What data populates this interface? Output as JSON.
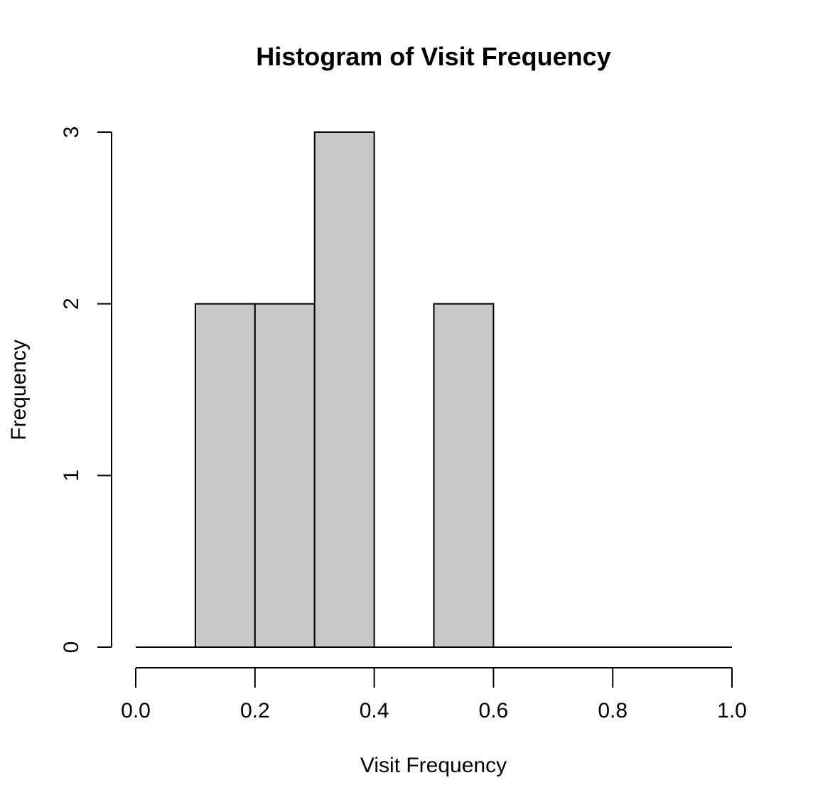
{
  "chart_data": {
    "type": "bar",
    "title": "Histogram of Visit Frequency",
    "xlabel": "Visit Frequency",
    "ylabel": "Frequency",
    "bins": [
      {
        "from": 0.0,
        "to": 0.1,
        "count": 0
      },
      {
        "from": 0.1,
        "to": 0.2,
        "count": 2
      },
      {
        "from": 0.2,
        "to": 0.3,
        "count": 2
      },
      {
        "from": 0.3,
        "to": 0.4,
        "count": 3
      },
      {
        "from": 0.4,
        "to": 0.5,
        "count": 0
      },
      {
        "from": 0.5,
        "to": 0.6,
        "count": 2
      },
      {
        "from": 0.6,
        "to": 0.7,
        "count": 0
      },
      {
        "from": 0.7,
        "to": 0.8,
        "count": 0
      },
      {
        "from": 0.8,
        "to": 0.9,
        "count": 0
      },
      {
        "from": 0.9,
        "to": 1.0,
        "count": 0
      }
    ],
    "xlim": [
      0,
      1
    ],
    "ylim": [
      0,
      3
    ],
    "x_ticks": [
      "0.0",
      "0.2",
      "0.4",
      "0.6",
      "0.8",
      "1.0"
    ],
    "y_ticks": [
      "0",
      "1",
      "2",
      "3"
    ],
    "grid": false,
    "bar_color": "#c8c8c8",
    "edge_color": "#000000"
  }
}
